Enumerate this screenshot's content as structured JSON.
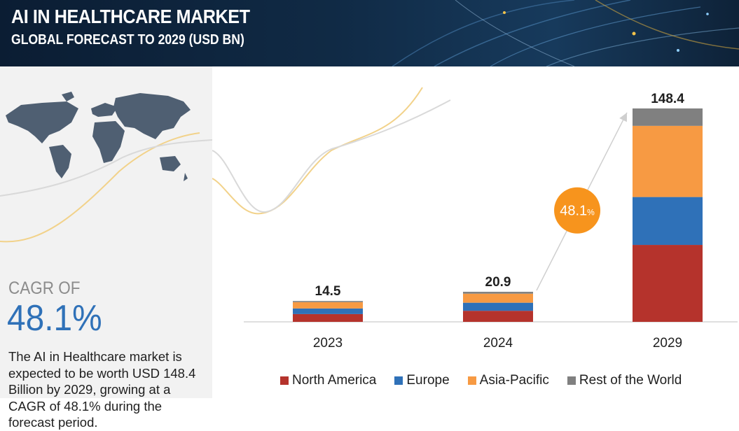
{
  "header": {
    "title": "AI IN HEALTHCARE MARKET",
    "subtitle": "GLOBAL FORECAST TO 2029 (USD BN)"
  },
  "left": {
    "cagr_label": "CAGR OF",
    "cagr_value": "48.1%",
    "description": "The AI in Healthcare market is expected to be worth USD 148.4 Billion by 2029, growing at a CAGR of 48.1% during the forecast period."
  },
  "chart_data": {
    "type": "bar",
    "stacked": true,
    "categories": [
      "2023",
      "2024",
      "2029"
    ],
    "totals": [
      "14.5",
      "20.9",
      "148.4"
    ],
    "series": [
      {
        "name": "North America",
        "color": "#b5332c",
        "values": [
          5.4,
          7.7,
          53.5
        ]
      },
      {
        "name": "Europe",
        "color": "#2f71b8",
        "values": [
          3.9,
          5.6,
          33.3
        ]
      },
      {
        "name": "Asia-Pacific",
        "color": "#f79a43",
        "values": [
          4.4,
          6.3,
          49.5
        ]
      },
      {
        "name": "Rest of the World",
        "color": "#808080",
        "values": [
          0.8,
          1.3,
          12.1
        ]
      }
    ],
    "ylim": [
      0,
      148.4
    ],
    "cagr_badge": {
      "value": "48.1",
      "unit": "%",
      "color": "#f7941d"
    },
    "legend_position": "bottom"
  }
}
